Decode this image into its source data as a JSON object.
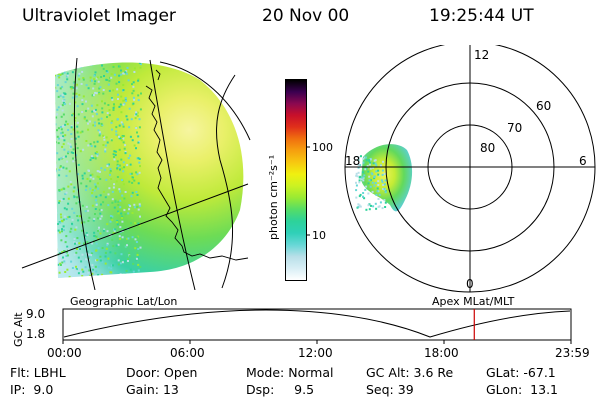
{
  "header": {
    "title": "Ultraviolet Imager",
    "date": "20 Nov 00",
    "time": "19:25:44 UT"
  },
  "colorbar": {
    "unit_label": "photon cm⁻²s⁻¹",
    "ticks": [
      "100",
      "10"
    ],
    "colors": [
      "#ffffff",
      "#d8eef5",
      "#b8dfe8",
      "#66d7d6",
      "#2fd0b8",
      "#2dd29a",
      "#55dd66",
      "#99ea33",
      "#ccf222",
      "#f0f010",
      "#f7c810",
      "#f6a00f",
      "#f0700f",
      "#e0301a",
      "#c8102a",
      "#8a0850",
      "#3a0050",
      "#000000"
    ]
  },
  "geographic_panel": {
    "caption": "Geographic Lat/Lon"
  },
  "polar_panel": {
    "caption": "Apex MLat/MLT",
    "mlt_labels": {
      "top": "12",
      "left": "18",
      "right": "6",
      "bottom": "0"
    },
    "lat_labels": [
      "60",
      "70",
      "80"
    ]
  },
  "altitude_plot": {
    "ylabel": "GC Alt",
    "y_ticks": [
      "9.0",
      "1.8"
    ],
    "x_ticks": [
      "00:00",
      "06:00",
      "12:00",
      "18:00",
      "23:59"
    ],
    "marker_color": "#cc0000",
    "current_time_fraction": 0.8096
  },
  "info": {
    "flt_label": "Flt:",
    "flt_value": "LBHL",
    "ip_label": "IP:",
    "ip_value": "9.0",
    "door_label": "Door:",
    "door_value": "Open",
    "gain_label": "Gain:",
    "gain_value": "13",
    "mode_label": "Mode:",
    "mode_value": "Normal",
    "dsp_label": "Dsp:",
    "dsp_value": "9.5",
    "gcalt_label": "GC Alt:",
    "gcalt_value": "3.6 Re",
    "seq_label": "Seq:",
    "seq_value": "39",
    "glat_label": "GLat:",
    "glat_value": "-67.1",
    "glon_label": "GLon:",
    "glon_value": "13.1"
  }
}
